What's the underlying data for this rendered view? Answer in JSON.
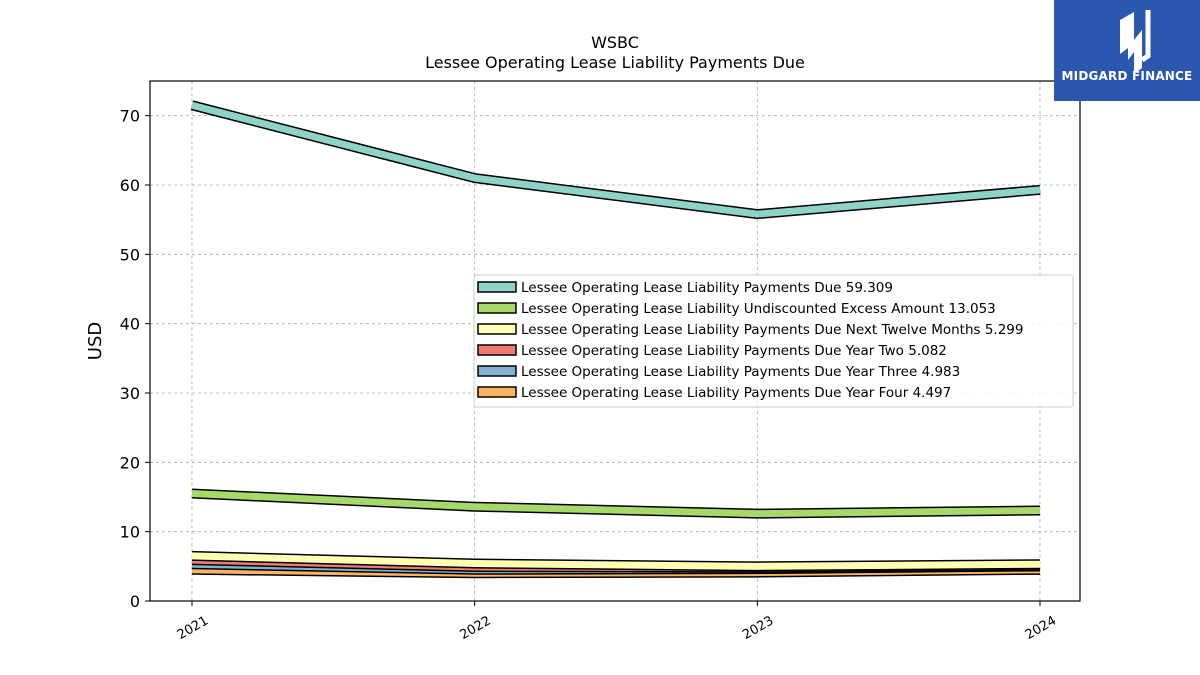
{
  "chart_data": {
    "type": "line",
    "title": "WSBC",
    "subtitle": "Lessee Operating Lease Liability Payments Due",
    "xlabel": "",
    "ylabel": "USD",
    "x": [
      "2021",
      "2022",
      "2023",
      "2024"
    ],
    "ylim": [
      0,
      75
    ],
    "yticks": [
      0,
      10,
      20,
      30,
      40,
      50,
      60,
      70
    ],
    "grid": true,
    "legend_position": "center-right",
    "series": [
      {
        "name": "Lessee Operating Lease Liability Payments Due",
        "legend_value": "59.309",
        "color": "#8dd3c7",
        "values": [
          71.5,
          61.0,
          55.8,
          59.3
        ]
      },
      {
        "name": "Lessee Operating Lease Liability Undiscounted Excess Amount",
        "legend_value": "13.053",
        "color": "#a6d96a",
        "values": [
          15.5,
          13.6,
          12.6,
          13.053
        ]
      },
      {
        "name": "Lessee Operating Lease Liability Payments Due Next Twelve Months",
        "legend_value": "5.299",
        "color": "#ffffb3",
        "values": [
          6.5,
          5.4,
          5.0,
          5.3
        ]
      },
      {
        "name": "Lessee Operating Lease Liability Payments Due Year Two",
        "legend_value": "5.082",
        "color": "#f07b72",
        "values": [
          5.9,
          4.9,
          4.8,
          5.082
        ]
      },
      {
        "name": "Lessee Operating Lease Liability Payments Due Year Three",
        "legend_value": "4.983",
        "color": "#80b1d3",
        "values": [
          5.3,
          4.5,
          4.6,
          4.983
        ]
      },
      {
        "name": "Lessee Operating Lease Liability Payments Due Year Four",
        "legend_value": "4.497",
        "color": "#fdb462",
        "values": [
          4.5,
          4.0,
          4.1,
          4.497
        ]
      }
    ]
  },
  "logo": {
    "text": "MIDGARD FINANCE"
  }
}
